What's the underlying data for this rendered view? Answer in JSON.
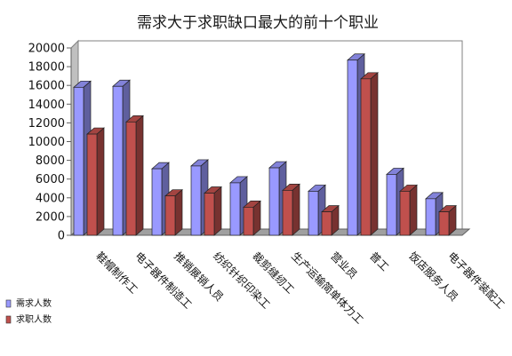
{
  "chart_data": {
    "type": "bar",
    "title": "需求大于求职缺口最大的前十个职业",
    "categories": [
      "鞋帽制作工",
      "电子器件制造工",
      "推销展销人员",
      "纺织针织印染工",
      "裁剪缝纫工",
      "生产运输简单体力工",
      "营业员",
      "普工",
      "饭店服务人员",
      "电子器件装配工"
    ],
    "series": [
      {
        "name": "需求人数",
        "color": "#9999ff",
        "values": [
          15800,
          15900,
          7100,
          7400,
          5600,
          7200,
          4700,
          18700,
          6500,
          3900
        ]
      },
      {
        "name": "求职人数",
        "color": "#c0504d",
        "values": [
          10800,
          12100,
          4200,
          4500,
          3000,
          4800,
          2500,
          16700,
          4700,
          2500
        ]
      }
    ],
    "yticks": [
      "0",
      "2000",
      "4000",
      "6000",
      "8000",
      "10000",
      "12000",
      "14000",
      "16000",
      "18000",
      "20000"
    ],
    "ylim": [
      0,
      20000
    ],
    "grid": false,
    "chart_style": "3d-clustered-column",
    "legend_position": "bottom-left"
  }
}
